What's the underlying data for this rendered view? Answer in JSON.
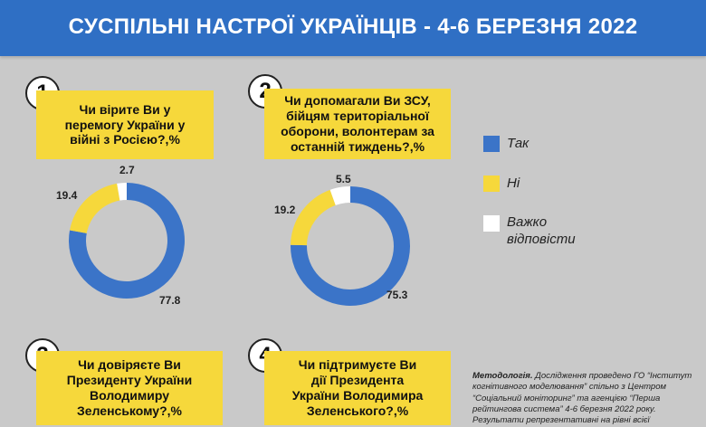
{
  "header": {
    "title": "СУСПІЛЬНІ НАСТРОЇ УКРАЇНЦІВ - 4-6 БЕРЕЗНЯ 2022"
  },
  "questions": [
    {
      "number": "1",
      "text": "Чи вірите Ви у перемогу України у війні з Росією?,%"
    },
    {
      "number": "2",
      "text": "Чи допомагали Ви ЗСУ, бійцям територіальної оборони, волонтерам за останній тиждень?,%"
    },
    {
      "number": "3",
      "text": "Чи довіряєте Ви Президенту України Володимиру Зеленському?,%"
    },
    {
      "number": "4",
      "text": "Чи підтримуєте Ви дії Президента України Володимира Зеленського?,%"
    }
  ],
  "legend": [
    {
      "label": "Так",
      "color": "#3b74c8"
    },
    {
      "label": "Ні",
      "color": "#f6d83b"
    },
    {
      "label": "Важко відповісти",
      "color": "#ffffff"
    }
  ],
  "methodology": {
    "label": "Методологія.",
    "text": "Дослідження проведено ГО “Інститут когнітивного моделювання” спільно з Центром “Соціальний моніторинг” та агенцією “Перша рейтингова система” 4-6 березня 2022 року. Результати репрезентативні на рівні всієї"
  },
  "chart_data": [
    {
      "type": "pie",
      "categories": [
        "Так",
        "Ні",
        "Важко відповісти"
      ],
      "values": [
        77.8,
        19.4,
        2.7
      ],
      "colors": [
        "#3b74c8",
        "#f6d83b",
        "#ffffff"
      ],
      "labels": [
        "77.8",
        "19.4",
        "2.7"
      ]
    },
    {
      "type": "pie",
      "categories": [
        "Так",
        "Ні",
        "Важко відповісти"
      ],
      "values": [
        75.3,
        19.2,
        5.5
      ],
      "colors": [
        "#3b74c8",
        "#f6d83b",
        "#ffffff"
      ],
      "labels": [
        "75.3",
        "19.2",
        "5.5"
      ]
    }
  ]
}
